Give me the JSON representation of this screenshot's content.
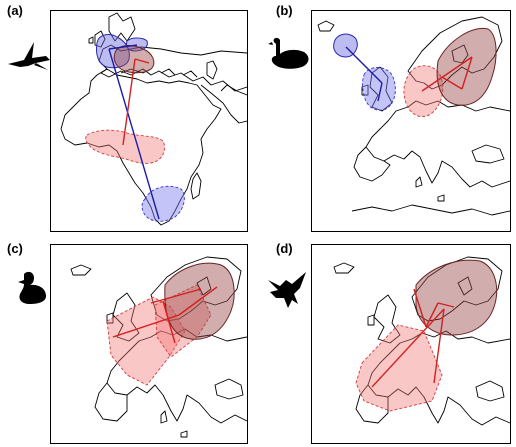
{
  "panels": [
    {
      "id": "a",
      "label": "(a)",
      "silhouette": "tern-icon"
    },
    {
      "id": "b",
      "label": "(b)",
      "silhouette": "swan-icon"
    },
    {
      "id": "c",
      "label": "(c)",
      "silhouette": "duck-icon"
    },
    {
      "id": "d",
      "label": "(d)",
      "silhouette": "raptor-icon"
    }
  ],
  "colors": {
    "blue": "#6a6ae0",
    "red": "#f27272",
    "brown": "#9a4a4a",
    "blue_line": "#1c1ca8",
    "red_line": "#d42020"
  }
}
